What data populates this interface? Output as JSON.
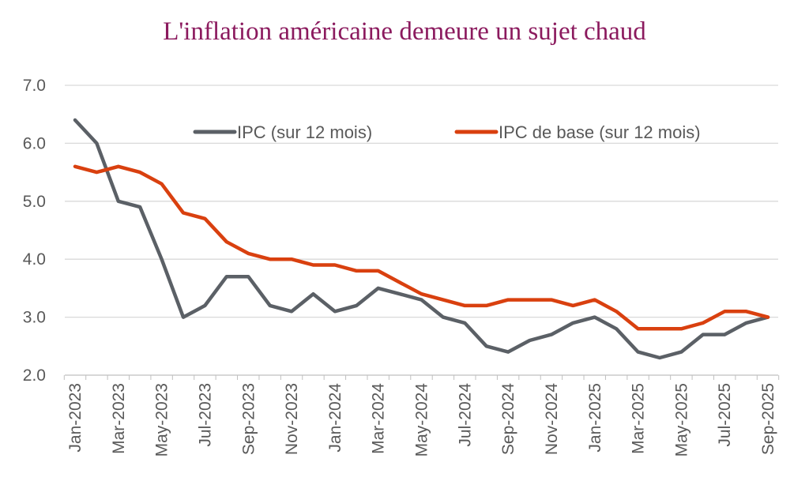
{
  "chart_data": {
    "type": "line",
    "title": "L'inflation américaine demeure un sujet chaud",
    "title_color": "#8b1a5e",
    "xlabel": "",
    "ylabel": "",
    "ylim": [
      2.0,
      7.0
    ],
    "yticks": [
      "7.0",
      "6.0",
      "5.0",
      "4.0",
      "3.0",
      "2.0"
    ],
    "grid": true,
    "legend_position": "top",
    "x": [
      "Jan-2023",
      "Feb-2023",
      "Mar-2023",
      "Apr-2023",
      "May-2023",
      "Jun-2023",
      "Jul-2023",
      "Aug-2023",
      "Sep-2023",
      "Oct-2023",
      "Nov-2023",
      "Dec-2023",
      "Jan-2024",
      "Feb-2024",
      "Mar-2024",
      "Apr-2024",
      "May-2024",
      "Jun-2024",
      "Jul-2024",
      "Aug-2024",
      "Sep-2024",
      "Oct-2024",
      "Nov-2024",
      "Dec-2024",
      "Jan-2025",
      "Feb-2025",
      "Mar-2025",
      "Apr-2025",
      "May-2025",
      "Jun-2025",
      "Jul-2025",
      "Aug-2025",
      "Sep-2025"
    ],
    "xticks_shown": [
      "Jan-2023",
      "Mar-2023",
      "May-2023",
      "Jul-2023",
      "Sep-2023",
      "Nov-2023",
      "Jan-2024",
      "Mar-2024",
      "May-2024",
      "Jul-2024",
      "Sep-2024",
      "Nov-2024",
      "Jan-2025",
      "Mar-2025",
      "May-2025",
      "Jul-2025",
      "Sep-2025"
    ],
    "series": [
      {
        "name": "IPC (sur 12 mois)",
        "color": "#5b6066",
        "values": [
          6.4,
          6.0,
          5.0,
          4.9,
          4.0,
          3.0,
          3.2,
          3.7,
          3.7,
          3.2,
          3.1,
          3.4,
          3.1,
          3.2,
          3.5,
          3.4,
          3.3,
          3.0,
          2.9,
          2.5,
          2.4,
          2.6,
          2.7,
          2.9,
          3.0,
          2.8,
          2.4,
          2.3,
          2.4,
          2.7,
          2.7,
          2.9,
          3.0
        ]
      },
      {
        "name": "IPC de base (sur 12 mois)",
        "color": "#d9400f",
        "values": [
          5.6,
          5.5,
          5.6,
          5.5,
          5.3,
          4.8,
          4.7,
          4.3,
          4.1,
          4.0,
          4.0,
          3.9,
          3.9,
          3.8,
          3.8,
          3.6,
          3.4,
          3.3,
          3.2,
          3.2,
          3.3,
          3.3,
          3.3,
          3.2,
          3.3,
          3.1,
          2.8,
          2.8,
          2.8,
          2.9,
          3.1,
          3.1,
          3.0
        ]
      }
    ]
  }
}
